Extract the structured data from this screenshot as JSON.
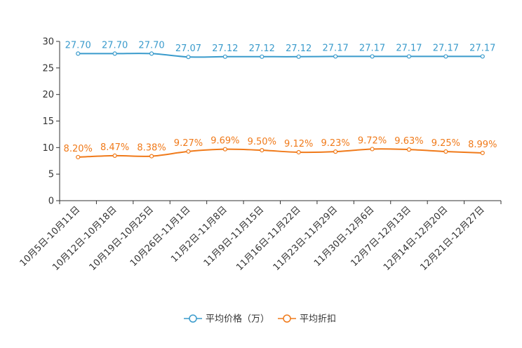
{
  "chart_data": {
    "type": "line",
    "title": "",
    "xlabel": "",
    "ylabel": "",
    "ylim": [
      0,
      30
    ],
    "yticks": [
      "0",
      "5",
      "10",
      "15",
      "20",
      "25",
      "30"
    ],
    "grid": false,
    "legend_position": "bottom-center",
    "categories": [
      "10月5日-10月11日",
      "10月12日-10月18日",
      "10月19日-10月25日",
      "10月26日-11月1日",
      "11月2日-11月8日",
      "11月9日-11月15日",
      "11月16日-11月22日",
      "11月23日-11月29日",
      "11月30日-12月6日",
      "12月7日-12月13日",
      "12月14日-12月20日",
      "12月21日-12月27日"
    ],
    "series": [
      {
        "name": "平均价格（万）",
        "color": "#3a9bcc",
        "values": [
          27.7,
          27.7,
          27.7,
          27.07,
          27.12,
          27.12,
          27.12,
          27.17,
          27.17,
          27.17,
          27.17,
          27.17
        ],
        "labels": [
          "27.70",
          "27.70",
          "27.70",
          "27.07",
          "27.12",
          "27.12",
          "27.12",
          "27.17",
          "27.17",
          "27.17",
          "27.17",
          "27.17"
        ]
      },
      {
        "name": "平均折扣",
        "color": "#f07a1a",
        "values": [
          8.2,
          8.47,
          8.38,
          9.27,
          9.69,
          9.5,
          9.12,
          9.23,
          9.72,
          9.63,
          9.25,
          8.99
        ],
        "labels": [
          "8.20%",
          "8.47%",
          "8.38%",
          "9.27%",
          "9.69%",
          "9.50%",
          "9.12%",
          "9.23%",
          "9.72%",
          "9.63%",
          "9.25%",
          "8.99%"
        ]
      }
    ]
  }
}
